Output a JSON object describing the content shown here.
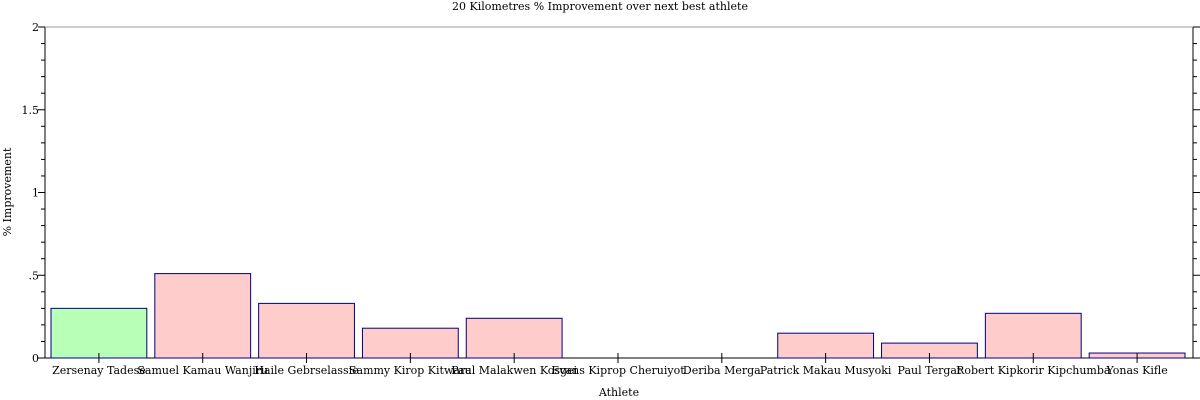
{
  "chart_data": {
    "type": "bar",
    "title": "20 Kilometres % Improvement over next best athlete",
    "xlabel": "Athlete",
    "ylabel": "% Improvement",
    "ylim": [
      0,
      2
    ],
    "yticks": [
      {
        "value": 0,
        "label": "0"
      },
      {
        "value": 0.5,
        "label": ".5"
      },
      {
        "value": 1,
        "label": "1"
      },
      {
        "value": 1.5,
        "label": "1.5"
      },
      {
        "value": 2,
        "label": "2"
      }
    ],
    "categories": [
      "Zersenay Tadese",
      "Samuel Kamau Wanjiru",
      "Haile Gebrselassie",
      "Sammy Kirop Kitwara",
      "Paul Malakwen Kosgei",
      "Evans Kiprop Cheruiyot",
      "Deriba Merga",
      "Patrick Makau Musyoki",
      "Paul Tergat",
      "Robert Kipkorir Kipchumba",
      "Yonas Kifle"
    ],
    "values": [
      0.3,
      0.51,
      0.33,
      0.18,
      0.24,
      0.0,
      0.0,
      0.15,
      0.09,
      0.27,
      0.03
    ],
    "highlight_index": 0,
    "colors": {
      "highlight_fill": "#b8ffb8",
      "bar_fill": "#ffcccc",
      "bar_stroke": "#000080",
      "axis": "#000000"
    },
    "grid": false,
    "legend": "none"
  }
}
